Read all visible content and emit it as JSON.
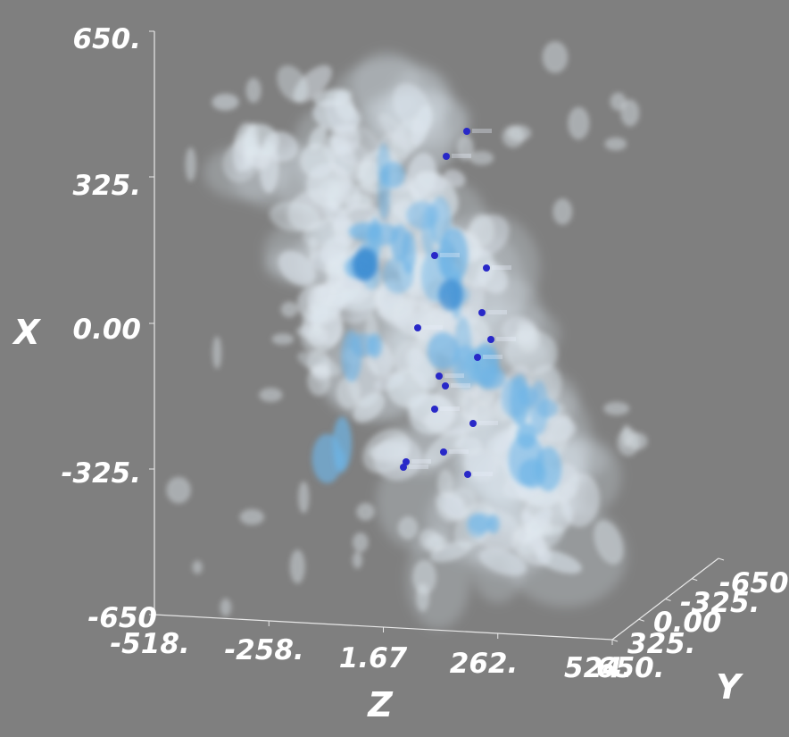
{
  "chart_data": {
    "type": "scatter",
    "subtype": "3d-isosurface-volume",
    "title": "",
    "background_color": "#7f7f7f",
    "isosurface_colors": {
      "outer": "#dde6ee",
      "inner": "#6eb4e6",
      "core": "#3c8cd2"
    },
    "marker_color": "#2828c8",
    "axes": {
      "x": {
        "label": "X",
        "range": [
          -650,
          650
        ],
        "ticks": [
          "650.",
          "325.",
          "0.00",
          "-325.",
          "-650"
        ]
      },
      "z": {
        "label": "Z",
        "range": [
          -518,
          524
        ],
        "ticks": [
          "-518.",
          "-258.",
          "1.67",
          "262.",
          "524."
        ]
      },
      "y": {
        "label": "Y",
        "range": [
          -650,
          650
        ],
        "ticks": [
          "-650.",
          "-325.",
          "0.00",
          "325.",
          "650."
        ]
      }
    },
    "grid": false,
    "legend": "none"
  }
}
